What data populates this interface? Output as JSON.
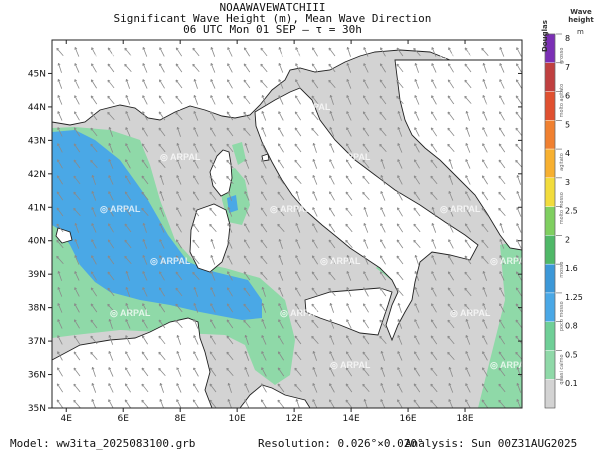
{
  "header": {
    "line1": "NOAAWAVEWATCHIII",
    "line2": "Significant Wave Height (m), Mean Wave Direction",
    "line3": "06 UTC Mon 01 SEP   —   τ = 30h"
  },
  "map": {
    "lon_range": [
      3.5,
      20.0
    ],
    "lat_range": [
      35.0,
      46.0
    ],
    "lon_ticks": [
      "4E",
      "6E",
      "8E",
      "10E",
      "12E",
      "14E",
      "16E",
      "18E"
    ],
    "lat_ticks": [
      "45N",
      "44N",
      "43N",
      "42N",
      "41N",
      "40N",
      "39N",
      "38N",
      "37N",
      "36N",
      "35N"
    ],
    "watermark": "ARPAL",
    "colors": {
      "calm": "#d3d3d3",
      "light": "#8fd9a8",
      "moderate": "#4aa8e6",
      "land": "#ffffff",
      "arrow": "#8a8a8a"
    }
  },
  "legend": {
    "title_top": "Douglas",
    "title_right": "Wave height",
    "unit": "m",
    "levels": [
      {
        "value": "8",
        "color": "#7b2fb5"
      },
      {
        "value": "7",
        "color": "#c04040"
      },
      {
        "value": "6",
        "color": "#e05030"
      },
      {
        "value": "5",
        "color": "#f08030"
      },
      {
        "value": "4",
        "color": "#f7b030"
      },
      {
        "value": "3",
        "color": "#f2dc3c"
      },
      {
        "value": "2.5",
        "color": "#7fcf60"
      },
      {
        "value": "2",
        "color": "#4fb868"
      },
      {
        "value": "1.6",
        "color": "#3c98d8"
      },
      {
        "value": "1.25",
        "color": "#4aa8e6"
      },
      {
        "value": "0.8",
        "color": "#6fcf97"
      },
      {
        "value": "0.5",
        "color": "#8fd9a8"
      },
      {
        "value": "0.1",
        "color": "#d3d3d3"
      }
    ],
    "douglas_labels": [
      "grosso",
      "molto agitato",
      "agitato",
      "molto mosso",
      "mosso",
      "poco mosso",
      "quasi calmo"
    ]
  },
  "footer": {
    "model": "Model: ww3ita_2025083100.grb",
    "resolution": "Resolution: 0.026°×0.020°",
    "analysis": "Analysis: Sun 00Z31AUG2025"
  }
}
